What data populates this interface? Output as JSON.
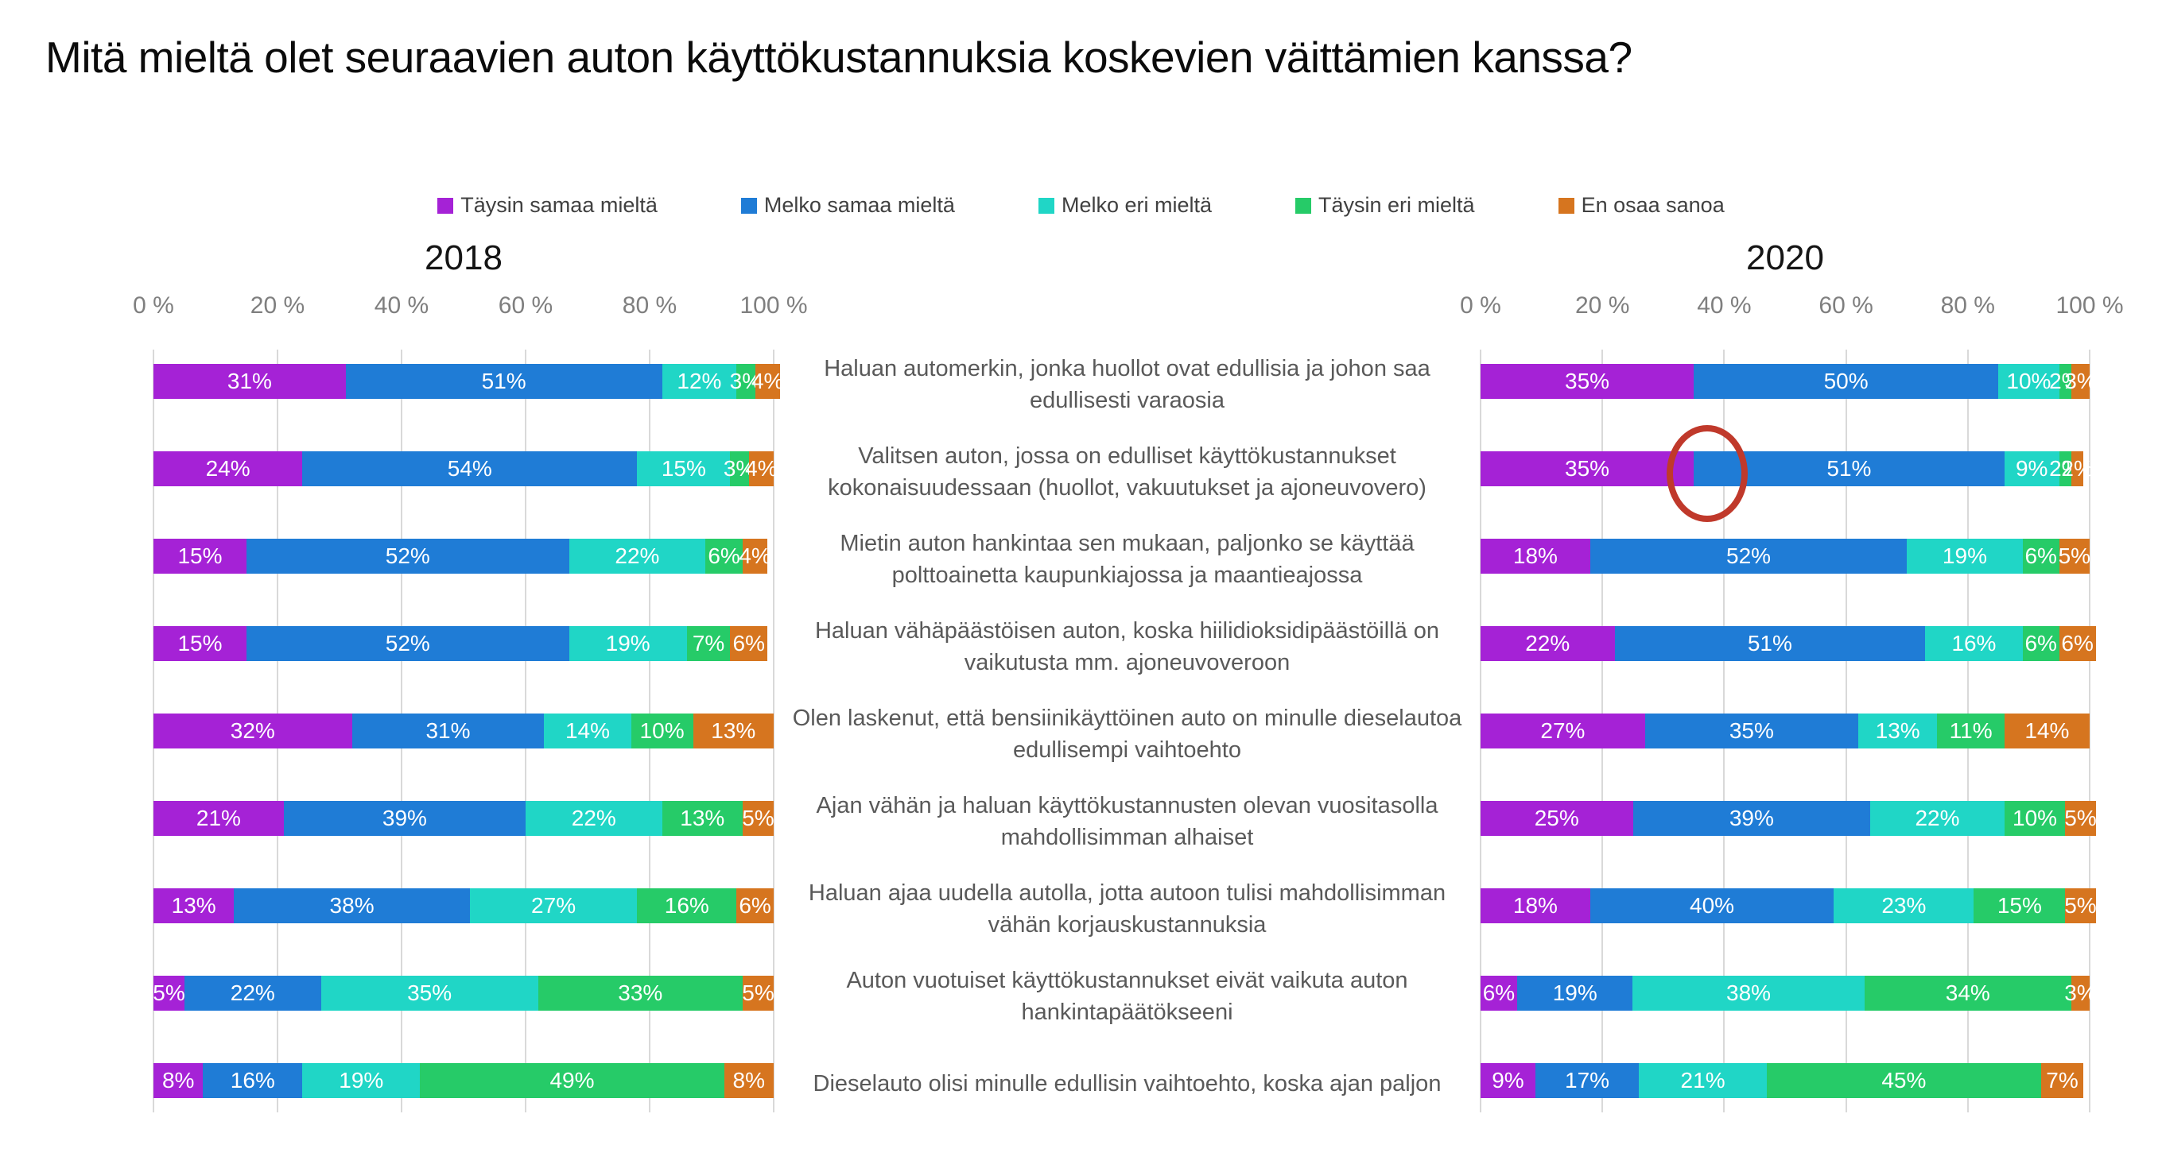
{
  "title": "Mitä mieltä olet seuraavien auton käyttökustannuksia koskevien väittämien kanssa?",
  "chart_data": {
    "type": "bar",
    "stacked": true,
    "orientation": "horizontal",
    "xlim": [
      0,
      100
    ],
    "x_ticks": [
      "0 %",
      "20 %",
      "40 %",
      "60 %",
      "80 %",
      "100 %"
    ],
    "grid": true,
    "legend_position": "top-center",
    "series_names": [
      "Täysin samaa mieltä",
      "Melko samaa mieltä",
      "Melko eri mieltä",
      "Täysin eri mieltä",
      "En osaa sanoa"
    ],
    "series_colors": [
      "#a522d6",
      "#1f7cd6",
      "#20d6c6",
      "#26cb68",
      "#d6751f"
    ],
    "categories": [
      "Haluan automerkin, jonka huollot ovat edullisia ja johon saa edullisesti varaosia",
      "Valitsen auton, jossa on edulliset käyttökustannukset kokonaisuudessaan (huollot, vakuutukset ja ajoneuvovero)",
      "Mietin auton hankintaa sen mukaan, paljonko se käyttää polttoainetta kaupunkiajossa ja maantieajossa",
      "Haluan vähäpäästöisen auton, koska hiilidioksidipäästöillä on vaikutusta mm. ajoneuvoveroon",
      "Olen laskenut, että bensiinikäyttöinen auto on minulle dieselautoa edullisempi vaihtoehto",
      "Ajan vähän ja haluan käyttökustannusten olevan vuositasolla mahdollisimman alhaiset",
      "Haluan ajaa uudella autolla, jotta autoon tulisi mahdollisimman vähän korjauskustannuksia",
      "Auton vuotuiset käyttökustannukset eivät vaikuta auton hankintapäätökseeni",
      "Dieselauto olisi minulle edullisin vaihtoehto, koska ajan paljon"
    ],
    "groups": [
      {
        "year": "2018",
        "rows": [
          [
            31,
            51,
            12,
            3,
            4
          ],
          [
            24,
            54,
            15,
            3,
            4
          ],
          [
            15,
            52,
            22,
            6,
            4
          ],
          [
            15,
            52,
            19,
            7,
            6
          ],
          [
            32,
            31,
            14,
            10,
            13
          ],
          [
            21,
            39,
            22,
            13,
            5
          ],
          [
            13,
            38,
            27,
            16,
            6
          ],
          [
            5,
            22,
            35,
            33,
            5
          ],
          [
            8,
            16,
            19,
            49,
            8
          ]
        ]
      },
      {
        "year": "2020",
        "rows": [
          [
            35,
            50,
            10,
            2,
            3
          ],
          [
            35,
            51,
            9,
            2,
            2
          ],
          [
            18,
            52,
            19,
            6,
            5
          ],
          [
            22,
            51,
            16,
            6,
            6
          ],
          [
            27,
            35,
            13,
            11,
            14
          ],
          [
            25,
            39,
            22,
            10,
            5
          ],
          [
            18,
            40,
            23,
            15,
            5
          ],
          [
            6,
            19,
            38,
            34,
            3
          ],
          [
            9,
            17,
            21,
            45,
            7
          ]
        ]
      }
    ],
    "annotation": {
      "shape": "ellipse",
      "color": "#c0392b",
      "chart": "2020",
      "category_index": 1,
      "highlighted_boundary_percent": 35
    }
  }
}
